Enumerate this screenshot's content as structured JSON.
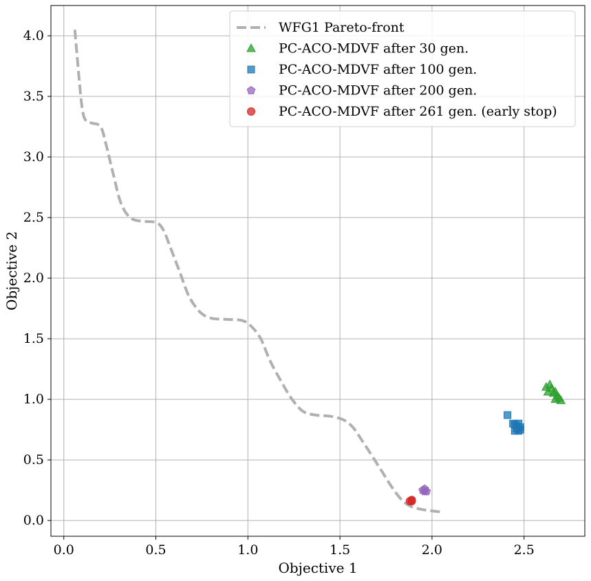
{
  "chart_data": {
    "type": "scatter",
    "title": "",
    "xlabel": "Objective 1",
    "ylabel": "Objective 2",
    "xlim": [
      -0.07,
      2.83
    ],
    "ylim": [
      -0.13,
      4.25
    ],
    "xticks": [
      0.0,
      0.5,
      1.0,
      1.5,
      2.0,
      2.5
    ],
    "xtick_labels": [
      "0.0",
      "0.5",
      "1.0",
      "1.5",
      "2.0",
      "2.5"
    ],
    "yticks": [
      0.0,
      0.5,
      1.0,
      1.5,
      2.0,
      2.5,
      3.0,
      3.5,
      4.0
    ],
    "ytick_labels": [
      "0.0",
      "0.5",
      "1.0",
      "1.5",
      "2.0",
      "2.5",
      "3.0",
      "3.5",
      "4.0"
    ],
    "grid": true,
    "legend_position": "top-right",
    "pareto_front": {
      "name": "WFG1 Pareto-front",
      "color": "#b0b0b0",
      "style": "dashed",
      "x": [
        0.06,
        0.08,
        0.1,
        0.12,
        0.15,
        0.2,
        0.23,
        0.27,
        0.31,
        0.36,
        0.42,
        0.5,
        0.54,
        0.58,
        0.63,
        0.68,
        0.74,
        0.8,
        0.88,
        0.97,
        1.02,
        1.07,
        1.12,
        1.18,
        1.24,
        1.3,
        1.37,
        1.45,
        1.52,
        1.57,
        1.62,
        1.68,
        1.73,
        1.78,
        1.83,
        1.88,
        1.95,
        2.05
      ],
      "y": [
        4.05,
        3.7,
        3.4,
        3.3,
        3.28,
        3.25,
        3.1,
        2.85,
        2.62,
        2.5,
        2.47,
        2.46,
        2.4,
        2.25,
        2.05,
        1.85,
        1.72,
        1.67,
        1.66,
        1.65,
        1.6,
        1.5,
        1.32,
        1.15,
        1.0,
        0.9,
        0.87,
        0.86,
        0.83,
        0.77,
        0.66,
        0.52,
        0.4,
        0.28,
        0.18,
        0.12,
        0.09,
        0.07
      ]
    },
    "series": [
      {
        "name": "PC-ACO-MDVF after 30 gen.",
        "marker": "triangle",
        "color": "#2ca02c",
        "points": [
          [
            2.62,
            1.1
          ],
          [
            2.63,
            1.06
          ],
          [
            2.64,
            1.12
          ],
          [
            2.65,
            1.09
          ],
          [
            2.66,
            1.05
          ],
          [
            2.67,
            1.0
          ],
          [
            2.67,
            1.06
          ],
          [
            2.68,
            1.03
          ],
          [
            2.69,
            1.01
          ],
          [
            2.7,
            0.99
          ]
        ]
      },
      {
        "name": "PC-ACO-MDVF after 100 gen.",
        "marker": "square",
        "color": "#1f77b4",
        "points": [
          [
            2.41,
            0.87
          ],
          [
            2.44,
            0.8
          ],
          [
            2.45,
            0.79
          ],
          [
            2.46,
            0.78
          ],
          [
            2.46,
            0.76
          ],
          [
            2.47,
            0.74
          ],
          [
            2.47,
            0.8
          ],
          [
            2.48,
            0.77
          ],
          [
            2.48,
            0.75
          ],
          [
            2.45,
            0.74
          ]
        ]
      },
      {
        "name": "PC-ACO-MDVF after 200 gen.",
        "marker": "pentagon",
        "color": "#9467bd",
        "points": [
          [
            1.95,
            0.25
          ],
          [
            1.96,
            0.24
          ],
          [
            1.97,
            0.24
          ],
          [
            1.96,
            0.26
          ]
        ]
      },
      {
        "name": "PC-ACO-MDVF after 261 gen. (early stop)",
        "marker": "circle",
        "color": "#d62728",
        "points": [
          [
            1.88,
            0.16
          ],
          [
            1.89,
            0.17
          ],
          [
            1.89,
            0.16
          ]
        ]
      }
    ]
  }
}
